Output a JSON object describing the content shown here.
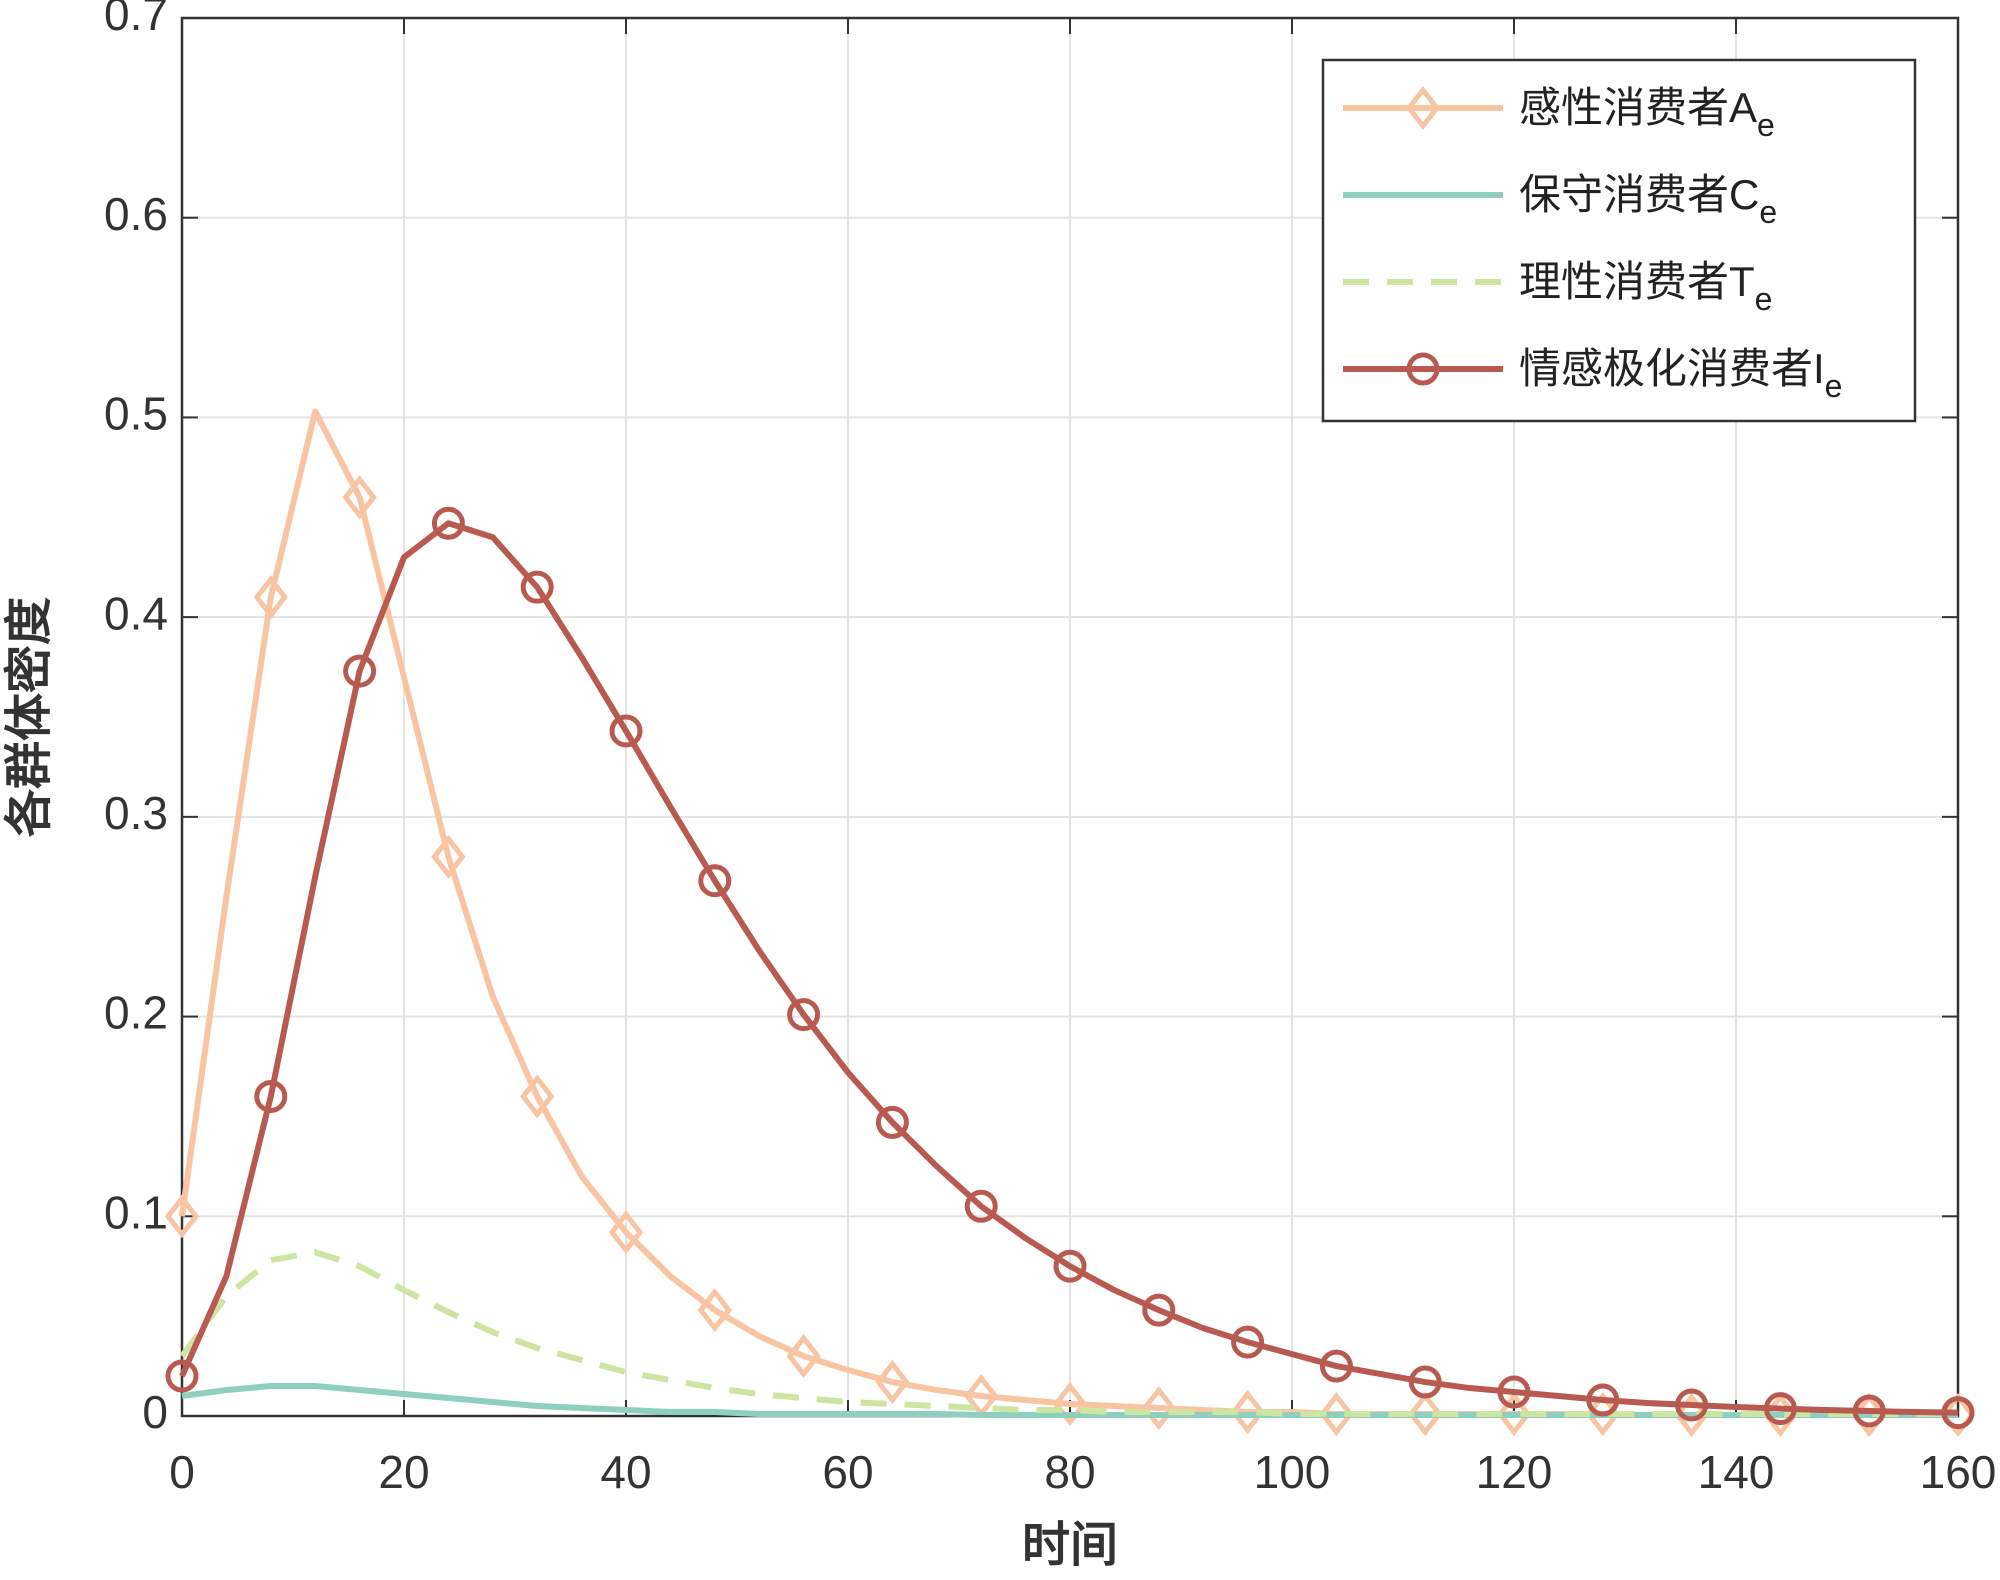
{
  "chart_data": {
    "type": "line",
    "xlabel": "时间",
    "ylabel": "各群体密度",
    "x": [
      0,
      4,
      8,
      12,
      16,
      20,
      24,
      28,
      32,
      36,
      40,
      44,
      48,
      52,
      56,
      60,
      64,
      68,
      72,
      76,
      80,
      84,
      88,
      92,
      96,
      100,
      104,
      108,
      112,
      116,
      120,
      124,
      128,
      132,
      136,
      140,
      144,
      148,
      152,
      156,
      160
    ],
    "series": [
      {
        "name": "感性消费者A",
        "name_sub": "e",
        "color": "#f8c4a2",
        "marker": "diamond",
        "dash": false,
        "values": [
          0.1,
          0.26,
          0.41,
          0.503,
          0.46,
          0.37,
          0.28,
          0.21,
          0.16,
          0.12,
          0.092,
          0.07,
          0.053,
          0.04,
          0.03,
          0.023,
          0.017,
          0.013,
          0.01,
          0.008,
          0.006,
          0.005,
          0.004,
          0.003,
          0.002,
          0.002,
          0.001,
          0.001,
          0.001,
          0.001,
          0.001,
          0.001,
          0.001,
          0.0005,
          0.0005,
          0.0005,
          0.0005,
          0.0005,
          0.0005,
          0.0005,
          0.0005
        ]
      },
      {
        "name": "保守消费者C",
        "name_sub": "e",
        "color": "#8ecfc0",
        "marker": "none",
        "dash": false,
        "values": [
          0.01,
          0.013,
          0.015,
          0.015,
          0.013,
          0.011,
          0.009,
          0.007,
          0.005,
          0.004,
          0.003,
          0.002,
          0.002,
          0.001,
          0.001,
          0.001,
          0.001,
          0.001,
          0.0005,
          0.0005,
          0.0005,
          0.0005,
          0.0005,
          0.0005,
          0.0005,
          0.0005,
          0.0005,
          0.0005,
          0.0005,
          0.0005,
          0.0005,
          0.0005,
          0.0005,
          0.0005,
          0.0005,
          0.0005,
          0.0005,
          0.0005,
          0.0005,
          0.0005,
          0.0005
        ]
      },
      {
        "name": "理性消费者T",
        "name_sub": "e",
        "color": "#cde5a0",
        "marker": "none",
        "dash": true,
        "values": [
          0.03,
          0.06,
          0.078,
          0.082,
          0.075,
          0.063,
          0.052,
          0.042,
          0.034,
          0.028,
          0.022,
          0.018,
          0.014,
          0.011,
          0.009,
          0.007,
          0.006,
          0.005,
          0.004,
          0.003,
          0.003,
          0.002,
          0.002,
          0.002,
          0.002,
          0.001,
          0.001,
          0.001,
          0.001,
          0.001,
          0.001,
          0.001,
          0.001,
          0.001,
          0.001,
          0.001,
          0.001,
          0.001,
          0.001,
          0.001,
          0.001
        ]
      },
      {
        "name": "情感极化消费者I",
        "name_sub": "e",
        "color": "#b85a50",
        "marker": "circle",
        "dash": false,
        "values": [
          0.02,
          0.07,
          0.16,
          0.27,
          0.373,
          0.43,
          0.447,
          0.44,
          0.415,
          0.38,
          0.343,
          0.305,
          0.268,
          0.233,
          0.201,
          0.172,
          0.147,
          0.125,
          0.105,
          0.089,
          0.075,
          0.063,
          0.053,
          0.044,
          0.037,
          0.031,
          0.025,
          0.021,
          0.017,
          0.014,
          0.012,
          0.01,
          0.008,
          0.0065,
          0.0055,
          0.0045,
          0.0037,
          0.003,
          0.0025,
          0.002,
          0.0017
        ]
      }
    ],
    "marker_every": 2,
    "xlim": [
      0,
      160
    ],
    "xticks": [
      0,
      20,
      40,
      60,
      80,
      100,
      120,
      140,
      160
    ],
    "ylim": [
      0,
      0.7
    ],
    "yticks": [
      0,
      0.1,
      0.2,
      0.3,
      0.4,
      0.5,
      0.6,
      0.7
    ],
    "grid": true,
    "legend": "upper right"
  }
}
